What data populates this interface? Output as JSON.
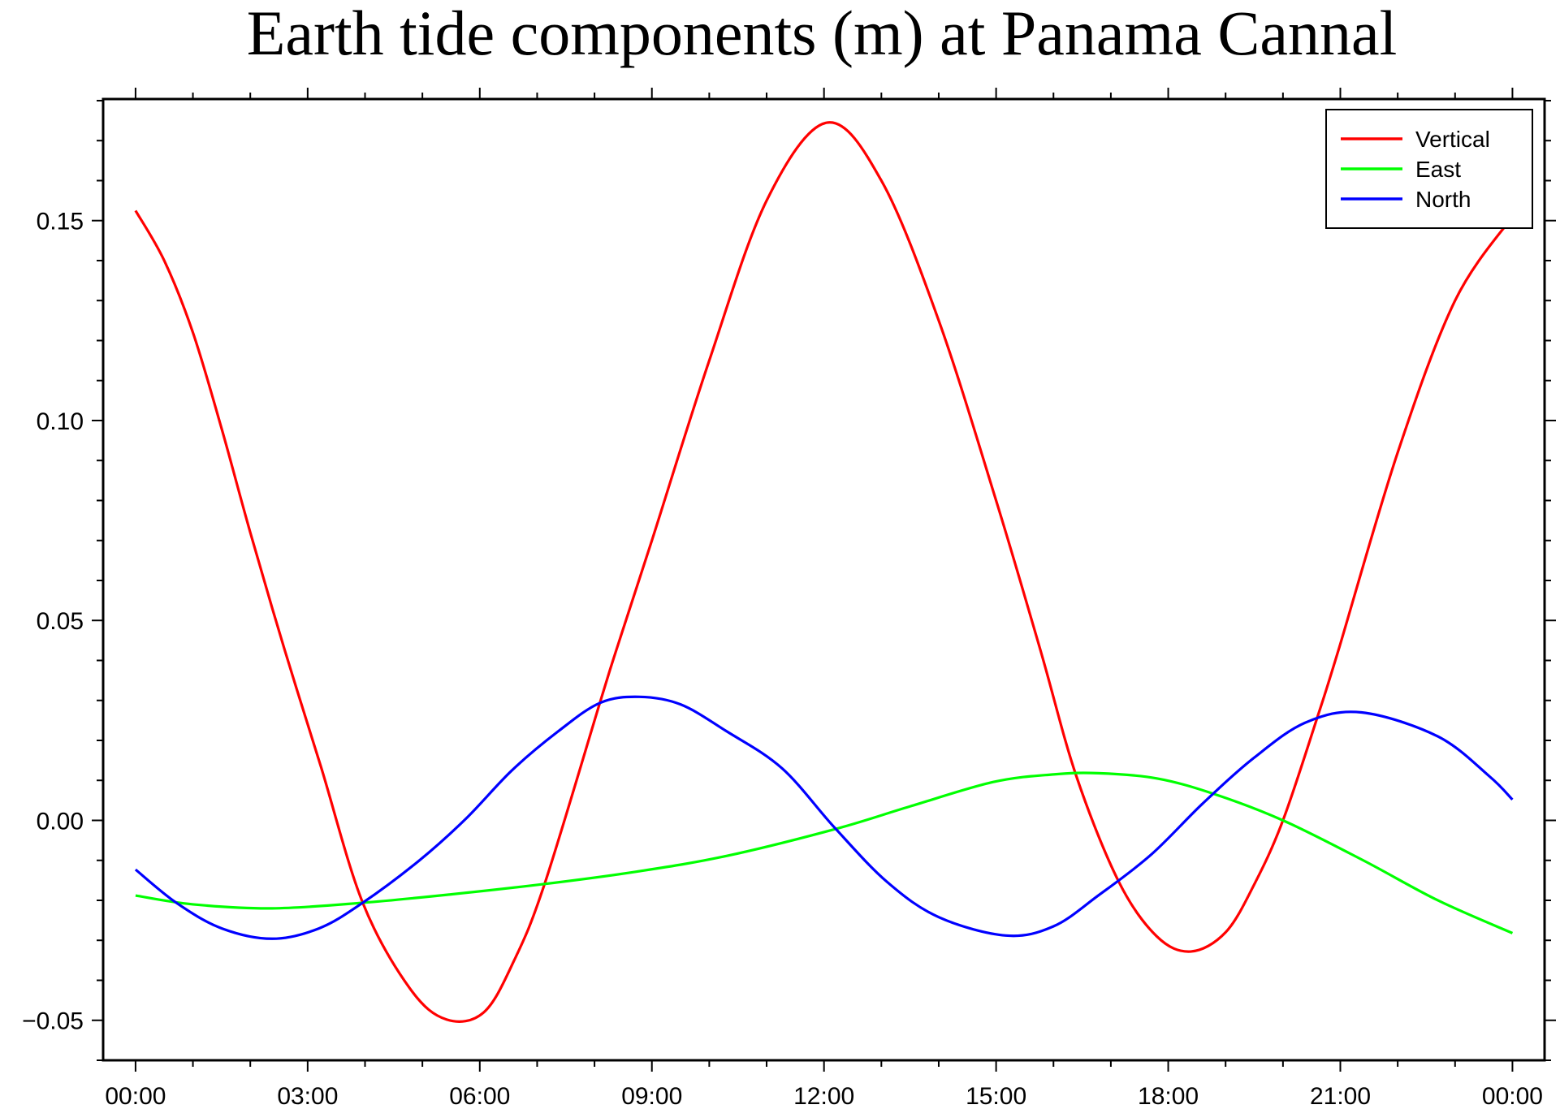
{
  "chart_data": {
    "type": "line",
    "title": "Earth tide components (m) at Panama Cannal",
    "xlabel": "",
    "ylabel": "",
    "x_unit": "hours",
    "xlim": [
      -0.565,
      24.56
    ],
    "ylim": [
      -0.06,
      0.1804
    ],
    "x_ticks": [
      {
        "value": 0,
        "label": "00:00"
      },
      {
        "value": 3,
        "label": "03:00"
      },
      {
        "value": 6,
        "label": "06:00"
      },
      {
        "value": 9,
        "label": "09:00"
      },
      {
        "value": 12,
        "label": "12:00"
      },
      {
        "value": 15,
        "label": "15:00"
      },
      {
        "value": 18,
        "label": "18:00"
      },
      {
        "value": 21,
        "label": "21:00"
      },
      {
        "value": 24,
        "label": "00:00"
      }
    ],
    "x_minor_step": 1,
    "y_ticks": [
      {
        "value": -0.05,
        "label": "−0.05"
      },
      {
        "value": 0.0,
        "label": "0.00"
      },
      {
        "value": 0.05,
        "label": "0.05"
      },
      {
        "value": 0.1,
        "label": "0.10"
      },
      {
        "value": 0.15,
        "label": "0.15"
      }
    ],
    "y_minor_step": 0.01,
    "grid": false,
    "legend_position": "top-right",
    "series": [
      {
        "name": "Vertical",
        "color": "#ff0000",
        "x": [
          0,
          0.5,
          1,
          1.5,
          2,
          2.6,
          3.23,
          3.96,
          4.78,
          5.42,
          6.07,
          6.6,
          7.13,
          8.1,
          8.38,
          9,
          10,
          11,
          12.05,
          13,
          14,
          15,
          15.77,
          16.4,
          17.14,
          17.8,
          18.39,
          19,
          19.5,
          20,
          20.6,
          20.97,
          22,
          23,
          24
        ],
        "y": [
          0.1525,
          0.14,
          0.122,
          0.098,
          0.072,
          0.0426,
          0.0135,
          -0.0206,
          -0.042,
          -0.0498,
          -0.048,
          -0.035,
          -0.0159,
          0.0297,
          0.0426,
          0.07,
          0.115,
          0.155,
          0.1745,
          0.16,
          0.125,
          0.08,
          0.0427,
          0.011,
          -0.0154,
          -0.029,
          -0.0328,
          -0.028,
          -0.016,
          0.0,
          0.0258,
          0.0427,
          0.092,
          0.13,
          0.151
        ]
      },
      {
        "name": "East",
        "color": "#00ff00",
        "x": [
          0,
          1,
          2.38,
          3.96,
          5.5,
          7.13,
          8.74,
          10.3,
          12.19,
          13.5,
          14.95,
          16,
          16.78,
          17.8,
          18.8,
          20,
          21.4,
          22.7,
          24
        ],
        "y": [
          -0.0188,
          -0.021,
          -0.022,
          -0.0206,
          -0.0185,
          -0.0159,
          -0.0128,
          -0.0089,
          -0.0022,
          0.0035,
          0.0096,
          0.0115,
          0.0118,
          0.0105,
          0.0066,
          0.0,
          -0.01,
          -0.02,
          -0.0282
        ]
      },
      {
        "name": "North",
        "color": "#0000ff",
        "x": [
          0,
          0.71,
          1.5,
          2.38,
          3.2,
          3.96,
          4.94,
          5.75,
          6.56,
          7.37,
          8.1,
          8.78,
          9.5,
          10.3,
          11.27,
          12.19,
          13.1,
          14,
          15.17,
          16,
          16.78,
          17.7,
          18.6,
          19.5,
          20.4,
          21.37,
          22.7,
          23.6,
          24
        ],
        "y": [
          -0.0123,
          -0.0206,
          -0.027,
          -0.0296,
          -0.027,
          -0.0206,
          -0.0101,
          0.0003,
          0.0125,
          0.0223,
          0.0294,
          0.0309,
          0.029,
          0.0223,
          0.013,
          -0.0019,
          -0.0154,
          -0.0242,
          -0.0288,
          -0.0265,
          -0.0188,
          -0.0086,
          0.0042,
          0.0157,
          0.0245,
          0.027,
          0.021,
          0.011,
          0.0052
        ]
      }
    ]
  }
}
